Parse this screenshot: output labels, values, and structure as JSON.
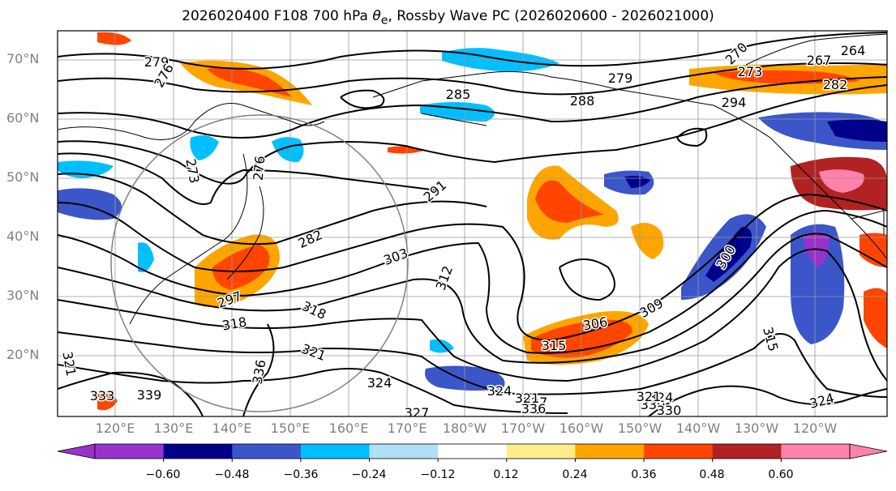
{
  "title": {
    "prefix": "2026020400 F108 700 hPa ",
    "symbol": "θ",
    "subscript": "e",
    "suffix": ", Rossby Wave PC (2026020600 - 2026021000)"
  },
  "lat_ticks": [
    "70°N",
    "60°N",
    "50°N",
    "40°N",
    "30°N",
    "20°N"
  ],
  "lon_ticks": [
    "120°E",
    "130°E",
    "140°E",
    "150°E",
    "160°E",
    "170°E",
    "180°W",
    "170°W",
    "160°W",
    "150°W",
    "140°W",
    "130°W",
    "120°W"
  ],
  "colorbar": {
    "colors": [
      "#9932cc",
      "#00008b",
      "#3a56c9",
      "#00bfff",
      "#b0e0f7",
      "#ffffff",
      "#ffec8b",
      "#ffa500",
      "#ff4500",
      "#b22222",
      "#ff82ab"
    ],
    "labels": [
      "−0.60",
      "−0.48",
      "−0.36",
      "−0.24",
      "−0.12",
      "0.12",
      "0.24",
      "0.36",
      "0.48",
      "0.60"
    ]
  },
  "contour_labels": [
    {
      "text": "279"
    },
    {
      "text": "276"
    },
    {
      "text": "285"
    },
    {
      "text": "288"
    },
    {
      "text": "279"
    },
    {
      "text": "270"
    },
    {
      "text": "267"
    },
    {
      "text": "264"
    },
    {
      "text": "273"
    },
    {
      "text": "282"
    },
    {
      "text": "294"
    },
    {
      "text": "273"
    },
    {
      "text": "276"
    },
    {
      "text": "282"
    },
    {
      "text": "291"
    },
    {
      "text": "297"
    },
    {
      "text": "303"
    },
    {
      "text": "312"
    },
    {
      "text": "318"
    },
    {
      "text": "318"
    },
    {
      "text": "321"
    },
    {
      "text": "336"
    },
    {
      "text": "324"
    },
    {
      "text": "327"
    },
    {
      "text": "339"
    },
    {
      "text": "321"
    },
    {
      "text": "333"
    },
    {
      "text": "306"
    },
    {
      "text": "309"
    },
    {
      "text": "300"
    },
    {
      "text": "315"
    },
    {
      "text": "315"
    },
    {
      "text": "324"
    },
    {
      "text": "327"
    },
    {
      "text": "330"
    },
    {
      "text": "324"
    },
    {
      "text": "321"
    },
    {
      "text": "324"
    },
    {
      "text": "330"
    },
    {
      "text": "336"
    },
    {
      "text": "321"
    }
  ]
}
